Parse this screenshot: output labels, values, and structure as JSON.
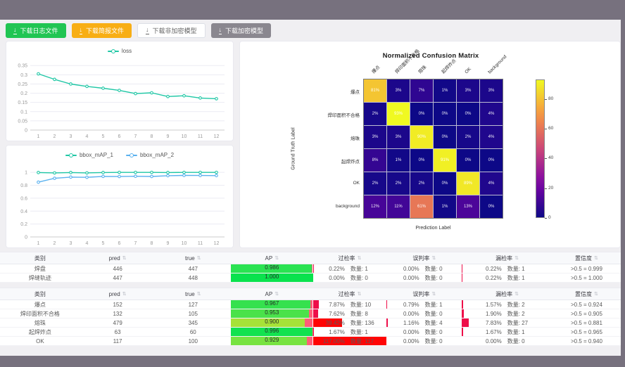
{
  "toolbar": {
    "buttons": [
      {
        "label": "下载日志文件",
        "style": "green"
      },
      {
        "label": "下载简报文件",
        "style": "orange"
      },
      {
        "label": "下载非加密模型",
        "style": "white"
      },
      {
        "label": "下载加密模型",
        "style": "gray"
      }
    ]
  },
  "colors": {
    "teal": "#1fc7a5",
    "blue": "#5ab1ef",
    "bar_red_small": "#ee0e49",
    "bar_red_big": "#ff0404",
    "ap_red_tip": "#ff5d78"
  },
  "chart_data": [
    {
      "type": "line",
      "x": [
        "1",
        "2",
        "3",
        "4",
        "5",
        "6",
        "7",
        "8",
        "9",
        "10",
        "11",
        "12"
      ],
      "series": [
        {
          "name": "loss",
          "color": "#1fc7a5",
          "values": [
            0.305,
            0.275,
            0.25,
            0.237,
            0.227,
            0.215,
            0.198,
            0.202,
            0.182,
            0.186,
            0.174,
            0.17
          ]
        }
      ],
      "ylim": [
        0,
        0.37
      ],
      "yticks": [
        {
          "v": 0,
          "t": "0"
        },
        {
          "v": 0.05,
          "t": "0.05"
        },
        {
          "v": 0.1,
          "t": "0.1"
        },
        {
          "v": 0.15,
          "t": "0.15"
        },
        {
          "v": 0.2,
          "t": "0.2"
        },
        {
          "v": 0.25,
          "t": "0.25"
        },
        {
          "v": 0.3,
          "t": "0.3"
        },
        {
          "v": 0.35,
          "t": "0.35"
        }
      ],
      "legend_position": "top-center",
      "grid": true
    },
    {
      "type": "line",
      "x": [
        "1",
        "2",
        "3",
        "4",
        "5",
        "6",
        "7",
        "8",
        "9",
        "10",
        "11",
        "12"
      ],
      "series": [
        {
          "name": "bbox_mAP_1",
          "color": "#1fc7a5",
          "values": [
            0.998,
            0.992,
            0.998,
            0.992,
            0.998,
            1.0,
            1.0,
            1.0,
            0.998,
            1.0,
            1.0,
            1.0
          ]
        },
        {
          "name": "bbox_mAP_2",
          "color": "#5ab1ef",
          "values": [
            0.848,
            0.908,
            0.927,
            0.924,
            0.938,
            0.936,
            0.94,
            0.937,
            0.949,
            0.953,
            0.952,
            0.95
          ]
        }
      ],
      "ylim": [
        0,
        1.1
      ],
      "yticks": [
        {
          "v": 0,
          "t": "0"
        },
        {
          "v": 0.2,
          "t": "0.2"
        },
        {
          "v": 0.4,
          "t": "0.4"
        },
        {
          "v": 0.6,
          "t": "0.6"
        },
        {
          "v": 0.8,
          "t": "0.8"
        },
        {
          "v": 1,
          "t": "1"
        }
      ],
      "legend_position": "top-center",
      "grid": true
    },
    {
      "type": "heatmap",
      "title": "Normalized Confusion Matrix",
      "xlabel": "Prediction Label",
      "ylabel": "Ground Truth Label",
      "labels": [
        "爆点",
        "焊印面积不合格",
        "熔珠",
        "起焊炸点",
        "OK",
        "background"
      ],
      "cells": [
        [
          81,
          3,
          7,
          1,
          3,
          3
        ],
        [
          2,
          93,
          0,
          0,
          0,
          4
        ],
        [
          3,
          3,
          90,
          0,
          2,
          4
        ],
        [
          8,
          1,
          0,
          91,
          0,
          0
        ],
        [
          2,
          2,
          2,
          0,
          89,
          4
        ],
        [
          12,
          11,
          61,
          1,
          13,
          0
        ]
      ],
      "unit": "%",
      "vmax": 93,
      "colormap": "plasma",
      "colorbar_ticks": [
        0,
        20,
        40,
        60,
        80
      ]
    }
  ],
  "tables": [
    {
      "headers": [
        {
          "label": "类别",
          "sortable": false
        },
        {
          "label": "pred",
          "sortable": true
        },
        {
          "label": "true",
          "sortable": true
        },
        {
          "label": "AP",
          "sortable": true
        },
        {
          "label": "过检率",
          "sortable": true
        },
        {
          "label": "误判率",
          "sortable": true
        },
        {
          "label": "漏检率",
          "sortable": true
        },
        {
          "label": "置信度",
          "sortable": true
        }
      ],
      "rows": [
        {
          "cls": "焊盘",
          "pred": "446",
          "true": "447",
          "ap": "0.986",
          "ap_value": 0.986,
          "ap_color": "#2be352",
          "rates": [
            {
              "pct": "0.22%",
              "count": "数量: 1",
              "bar": 0.22
            },
            {
              "pct": "0.00%",
              "count": "数量: 0",
              "bar": 0
            },
            {
              "pct": "0.22%",
              "count": "数量: 1",
              "bar": 0.22
            }
          ],
          "conf": ">0.5 = 0.999"
        },
        {
          "cls": "焊缝轨迹",
          "pred": "447",
          "true": "448",
          "ap": "1.000",
          "ap_value": 1.0,
          "ap_color": "#0ae24d",
          "rates": [
            {
              "pct": "0.00%",
              "count": "数量: 0",
              "bar": 0
            },
            {
              "pct": "0.00%",
              "count": "数量: 0",
              "bar": 0
            },
            {
              "pct": "0.22%",
              "count": "数量: 1",
              "bar": 0.22
            }
          ],
          "conf": ">0.5 = 1.000"
        }
      ]
    },
    {
      "headers": [
        {
          "label": "类别",
          "sortable": false
        },
        {
          "label": "pred",
          "sortable": true
        },
        {
          "label": "true",
          "sortable": true
        },
        {
          "label": "AP",
          "sortable": true
        },
        {
          "label": "过检率",
          "sortable": true
        },
        {
          "label": "误判率",
          "sortable": true
        },
        {
          "label": "漏检率",
          "sortable": true
        },
        {
          "label": "置信度",
          "sortable": true
        }
      ],
      "rows": [
        {
          "cls": "爆点",
          "pred": "152",
          "true": "127",
          "ap": "0.967",
          "ap_value": 0.967,
          "ap_color": "#35e14e",
          "rates": [
            {
              "pct": "7.87%",
              "count": "数量: 10",
              "bar": 7.87
            },
            {
              "pct": "0.79%",
              "count": "数量: 1",
              "bar": 0.79
            },
            {
              "pct": "1.57%",
              "count": "数量: 2",
              "bar": 1.57
            }
          ],
          "conf": ">0.5 = 0.924"
        },
        {
          "cls": "焊印面积不合格",
          "pred": "132",
          "true": "105",
          "ap": "0.953",
          "ap_value": 0.953,
          "ap_color": "#4ae24a",
          "rates": [
            {
              "pct": "7.62%",
              "count": "数量: 8",
              "bar": 7.62
            },
            {
              "pct": "0.00%",
              "count": "数量: 0",
              "bar": 0
            },
            {
              "pct": "1.90%",
              "count": "数量: 2",
              "bar": 1.9
            }
          ],
          "conf": ">0.5 = 0.905"
        },
        {
          "cls": "熔珠",
          "pred": "479",
          "true": "345",
          "ap": "0.900",
          "ap_value": 0.9,
          "ap_color": "#a6e238",
          "rates": [
            {
              "pct": "39.42%",
              "count": "数量: 136",
              "bar": 39.42
            },
            {
              "pct": "1.16%",
              "count": "数量: 4",
              "bar": 1.16
            },
            {
              "pct": "7.83%",
              "count": "数量: 27",
              "bar": 7.83
            }
          ],
          "conf": ">0.5 = 0.881"
        },
        {
          "cls": "起焊炸点",
          "pred": "63",
          "true": "60",
          "ap": "0.996",
          "ap_value": 0.996,
          "ap_color": "#12e24f",
          "rates": [
            {
              "pct": "1.67%",
              "count": "数量: 1",
              "bar": 1.67
            },
            {
              "pct": "0.00%",
              "count": "数量: 0",
              "bar": 0
            },
            {
              "pct": "1.67%",
              "count": "数量: 1",
              "bar": 1.67
            }
          ],
          "conf": ">0.5 = 0.965"
        },
        {
          "cls": "OK",
          "pred": "117",
          "true": "100",
          "ap": "0.929",
          "ap_value": 0.929,
          "ap_color": "#78e341",
          "rates": [
            {
              "pct": "117.00%",
              "count": "数量: 117",
              "bar": 100
            },
            {
              "pct": "0.00%",
              "count": "数量: 0",
              "bar": 0
            },
            {
              "pct": "0.00%",
              "count": "数量: 0",
              "bar": 0
            }
          ],
          "conf": ">0.5 = 0.940"
        }
      ]
    }
  ]
}
